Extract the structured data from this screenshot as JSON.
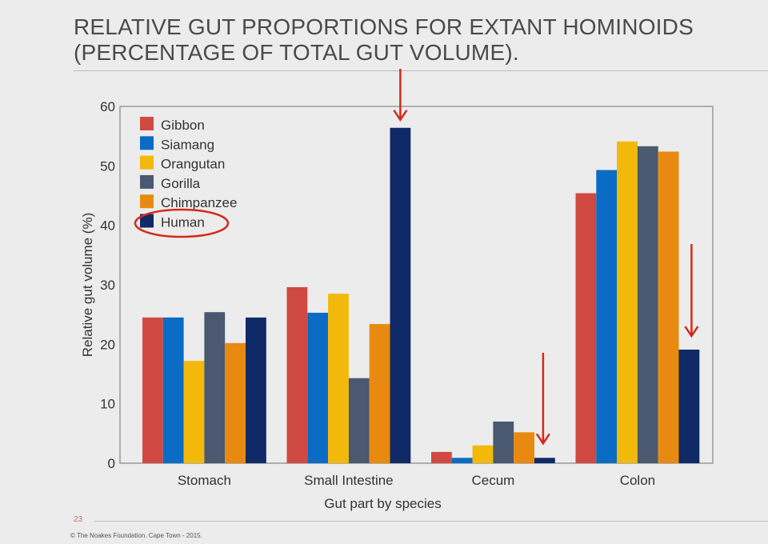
{
  "slide": {
    "title_line1": "RELATIVE GUT PROPORTIONS FOR EXTANT HOMINOIDS",
    "title_line2": "(PERCENTAGE OF TOTAL GUT VOLUME).",
    "page_number": "23",
    "footer": "© The Noakes Foundation. Cape Town - 2015."
  },
  "chart_data": {
    "type": "bar",
    "title": "",
    "xlabel": "Gut part by species",
    "ylabel": "Relative gut volume (%)",
    "ylim": [
      0,
      60
    ],
    "yticks": [
      0,
      10,
      20,
      30,
      40,
      50,
      60
    ],
    "categories": [
      "Stomach",
      "Small Intestine",
      "Cecum",
      "Colon"
    ],
    "legend_position": "top-left",
    "series": [
      {
        "name": "Gibbon",
        "color": "#d04a42",
        "values": [
          24.5,
          29.6,
          1.9,
          45.4
        ]
      },
      {
        "name": "Siamang",
        "color": "#0a6cc4",
        "values": [
          24.5,
          25.3,
          0.9,
          49.3
        ]
      },
      {
        "name": "Orangutan",
        "color": "#f2b90a",
        "values": [
          17.2,
          28.5,
          3.0,
          54.1
        ]
      },
      {
        "name": "Gorilla",
        "color": "#4a5870",
        "values": [
          25.4,
          14.3,
          7.0,
          53.3
        ]
      },
      {
        "name": "Chimpanzee",
        "color": "#e88a10",
        "values": [
          20.2,
          23.4,
          5.2,
          52.4
        ]
      },
      {
        "name": "Human",
        "color": "#0f2a66",
        "values": [
          24.5,
          56.4,
          0.9,
          19.1
        ]
      }
    ],
    "annotations": {
      "highlight_color": "#d42a1a",
      "circled_legend": "Human",
      "arrows_on": [
        "Small Intestine/Human",
        "Cecum/Human",
        "Colon/Human"
      ]
    }
  }
}
